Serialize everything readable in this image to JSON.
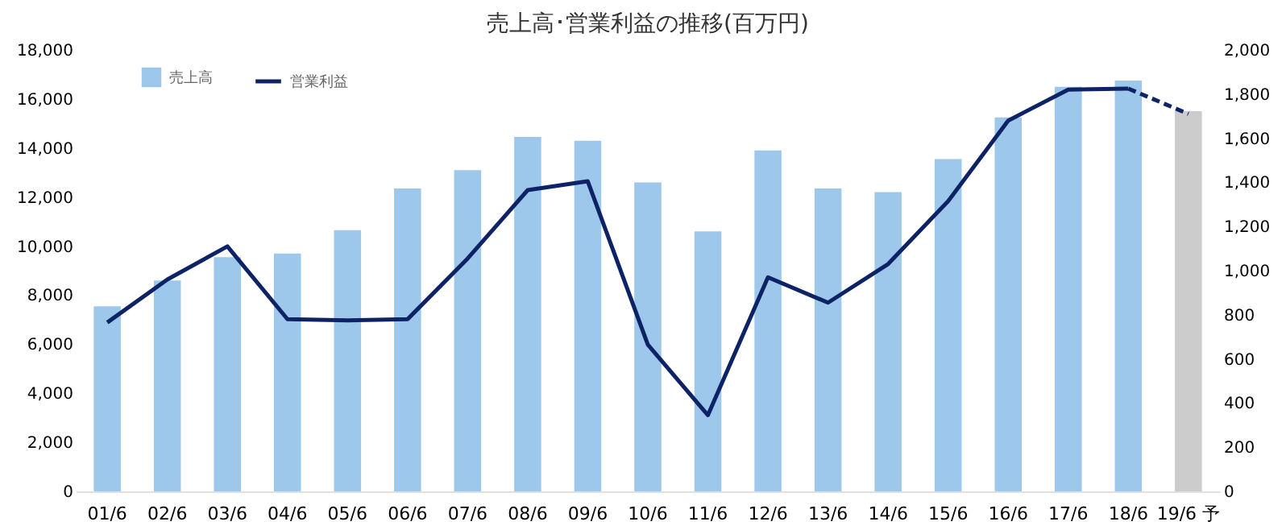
{
  "chart_data": {
    "type": "bar",
    "title": "売上高･営業利益の推移(百万円)",
    "categories": [
      "01/6",
      "02/6",
      "03/6",
      "04/6",
      "05/6",
      "06/6",
      "07/6",
      "08/6",
      "09/6",
      "10/6",
      "11/6",
      "12/6",
      "13/6",
      "14/6",
      "15/6",
      "16/6",
      "17/6",
      "18/6",
      "19/6 予"
    ],
    "series": [
      {
        "name": "売上高",
        "color": "#9dc8eb",
        "colors": [
          "#9dc8eb",
          "#9dc8eb",
          "#9dc8eb",
          "#9dc8eb",
          "#9dc8eb",
          "#9dc8eb",
          "#9dc8eb",
          "#9dc8eb",
          "#9dc8eb",
          "#9dc8eb",
          "#9dc8eb",
          "#9dc8eb",
          "#9dc8eb",
          "#9dc8eb",
          "#9dc8eb",
          "#9dc8eb",
          "#9dc8eb",
          "#9dc8eb",
          "#cccccc"
        ],
        "values": [
          7550,
          8600,
          9550,
          9700,
          10650,
          12350,
          13100,
          14450,
          14300,
          12600,
          10600,
          13900,
          12350,
          12200,
          13550,
          15250,
          16500,
          16750,
          15500
        ]
      },
      {
        "name": "営業利益",
        "type": "line",
        "axis": "y2",
        "color": "#0d2366",
        "line_style": "solid",
        "values": [
          765,
          960,
          1110,
          780,
          775,
          780,
          1055,
          1365,
          1405,
          665,
          345,
          970,
          855,
          1030,
          1315,
          1680,
          1820,
          1825,
          null
        ]
      },
      {
        "type": "line",
        "axis": "y2",
        "color": "#0d2366",
        "line_style": "dashed",
        "values": [
          null,
          null,
          null,
          null,
          null,
          null,
          null,
          null,
          null,
          null,
          null,
          null,
          null,
          null,
          null,
          null,
          null,
          1825,
          1710
        ]
      }
    ],
    "ylim": [
      0,
      18000
    ],
    "yticks": [
      0,
      {
        "value": 2000,
        "label": "2,000"
      },
      {
        "value": 4000,
        "label": "4,000"
      },
      {
        "value": 6000,
        "label": "6,000"
      },
      {
        "value": 8000,
        "label": "8,000"
      },
      {
        "value": 10000,
        "label": "10,000"
      },
      {
        "value": 12000,
        "label": "12,000"
      },
      {
        "value": 14000,
        "label": "14,000"
      },
      {
        "value": 16000,
        "label": "16,000"
      },
      {
        "value": 18000,
        "label": "18,000"
      }
    ],
    "y2lim": [
      0,
      2000
    ],
    "y2ticks": [
      0,
      200,
      400,
      600,
      800,
      {
        "value": 1000,
        "label": "1,000"
      },
      {
        "value": 1200,
        "label": "1,200"
      },
      {
        "value": 1400,
        "label": "1,400"
      },
      {
        "value": 1600,
        "label": "1,600"
      },
      {
        "value": 1800,
        "label": "1,800"
      },
      {
        "value": 2000,
        "label": "2,000"
      }
    ],
    "grid": false,
    "legend": "top left"
  }
}
